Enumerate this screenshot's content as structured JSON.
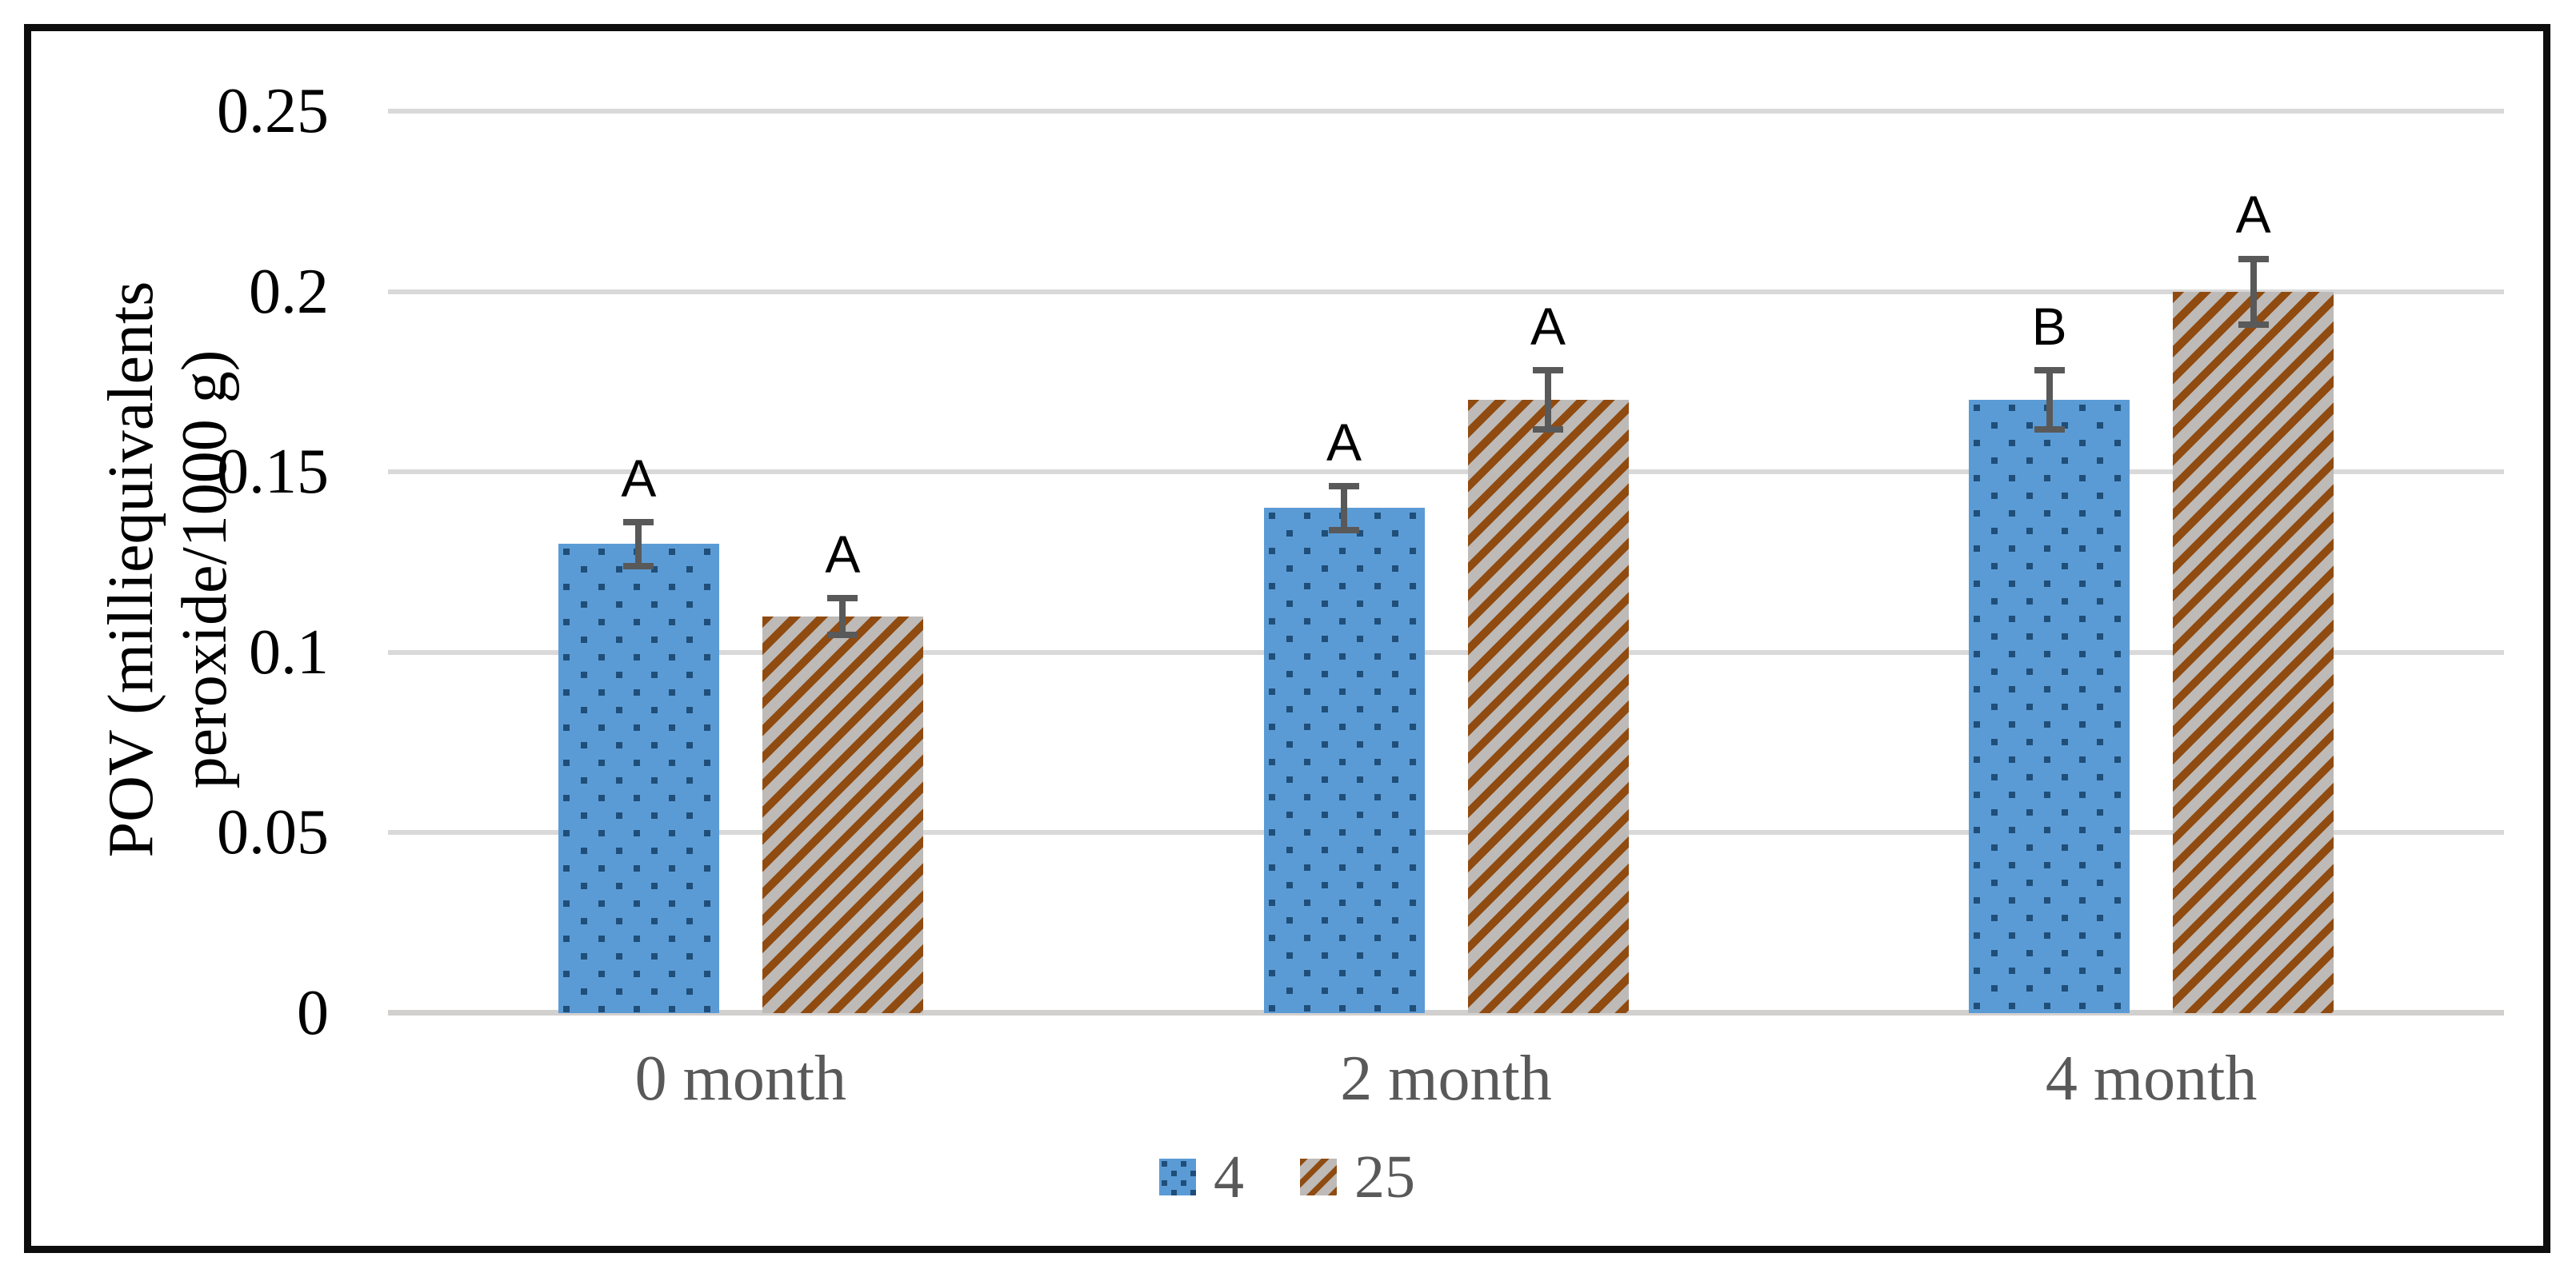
{
  "chart_data": {
    "type": "bar",
    "title": "",
    "categories": [
      "0 month",
      "2 month",
      "4 month"
    ],
    "series": [
      {
        "name": "4",
        "values": [
          0.13,
          0.14,
          0.17
        ],
        "errors": [
          0.007,
          0.007,
          0.009
        ],
        "sig_letters": [
          "A",
          "A",
          "B"
        ],
        "pattern": "dotted-diamond",
        "fill": "#5B9BD5",
        "pattern_color": "#1F4E79"
      },
      {
        "name": "25",
        "values": [
          0.11,
          0.17,
          0.2
        ],
        "errors": [
          0.006,
          0.009,
          0.01
        ],
        "sig_letters": [
          "A",
          "A",
          "A"
        ],
        "pattern": "diagonal-stripes-up",
        "fill": "#BDBAB7",
        "pattern_color": "#904B11"
      }
    ],
    "ylabel": "POV (milliequivalents peroxide/1000 g)",
    "ylabel_lines": [
      "POV (milliequivalents",
      "peroxide/1000 g)"
    ],
    "xlabel": "",
    "ylim": [
      0,
      0.25
    ],
    "ytick_values": [
      0,
      0.05,
      0.1,
      0.15,
      0.2,
      0.25
    ],
    "ytick_labels": [
      "0",
      "0.05",
      "0.1",
      "0.15",
      "0.2",
      "0.25"
    ],
    "grid": true,
    "legend_position": "bottom-center",
    "error_bars": true,
    "colors": {
      "blue": "#5B9BD5",
      "blue_dot": "#1F4E79",
      "gray": "#BDBAB7",
      "brown": "#904B11",
      "errorbar": "#595959",
      "gridline": "#D9D9D9",
      "gridline_baseline": "#D2D0CE",
      "axis_text": "#000000",
      "category_text": "#595959",
      "frame_border": "#0D0D0D"
    }
  }
}
